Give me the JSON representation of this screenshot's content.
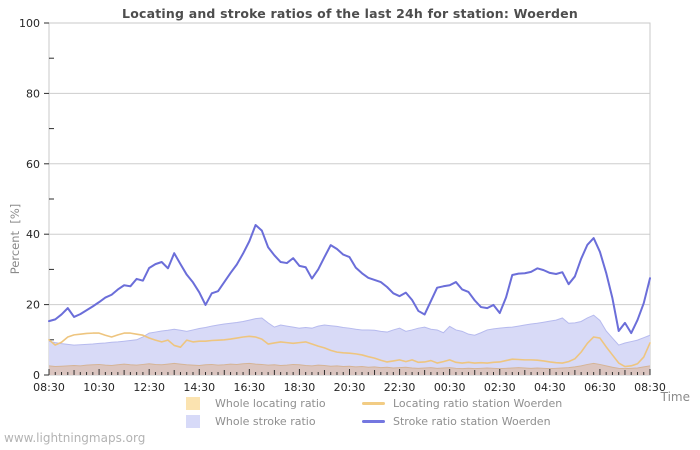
{
  "title": "Locating and stroke ratios of the last 24h for station: Woerden",
  "ylabel": "Percent  [%]",
  "xlabel": "Time",
  "watermark": "www.lightningmaps.org",
  "colors": {
    "frame": "#c9c9c9",
    "grid": "#cdcdcd",
    "tick": "#2e2e2e",
    "tick_label": "#262626",
    "muted_text": "#8a8a8a",
    "legend_text": "#8f8f8f",
    "watermark_text": "#b3b3b3",
    "title_text": "#4d4d4d"
  },
  "legend": {
    "items": [
      {
        "label": "Whole locating ratio",
        "swatch": "area",
        "color": "#fbe3b0"
      },
      {
        "label": "Whole stroke ratio",
        "swatch": "area",
        "color": "#d7daf8"
      },
      {
        "label": "Locating ratio station Woerden",
        "swatch": "line",
        "color": "#f2cc84"
      },
      {
        "label": "Stroke ratio station Woerden",
        "swatch": "line",
        "color": "#7477e0"
      }
    ]
  },
  "chart_data": {
    "type": "line",
    "title": "Locating and stroke ratios of the last 24h for station: Woerden",
    "xlabel": "Time",
    "ylabel": "Percent [%]",
    "ylim": [
      0,
      100
    ],
    "x_start": "08:30",
    "x_interval_minutes": 15,
    "x_ticks": [
      "08:30",
      "10:30",
      "12:30",
      "14:30",
      "16:30",
      "18:30",
      "20:30",
      "22:30",
      "00:30",
      "02:30",
      "04:30",
      "06:30",
      "08:30"
    ],
    "y_ticks": [
      0,
      20,
      40,
      60,
      80,
      100
    ],
    "grid": true,
    "legend_position": "bottom",
    "series": [
      {
        "id": "whole-stroke",
        "name": "Whole stroke ratio",
        "type": "area",
        "fill": "#d8daf7",
        "edge": "#b6baee",
        "values": [
          9.6,
          9.2,
          8.9,
          8.7,
          8.5,
          8.6,
          8.7,
          8.8,
          9,
          9.1,
          9.3,
          9.4,
          9.6,
          9.8,
          10,
          10.8,
          11.9,
          12.2,
          12.5,
          12.7,
          13,
          12.7,
          12.4,
          12.8,
          13.2,
          13.5,
          13.9,
          14.2,
          14.5,
          14.7,
          14.9,
          15.2,
          15.6,
          16,
          16.2,
          14.8,
          13.6,
          14.2,
          13.9,
          13.6,
          13.3,
          13.5,
          13.3,
          13.9,
          14.2,
          14,
          13.8,
          13.5,
          13.3,
          13,
          12.8,
          12.8,
          12.7,
          12.4,
          12.2,
          12.8,
          13.3,
          12.4,
          12.8,
          13.3,
          13.6,
          13,
          12.8,
          12,
          13.8,
          12.8,
          12.4,
          11.6,
          11.3,
          12,
          12.8,
          13.1,
          13.3,
          13.5,
          13.6,
          13.9,
          14.2,
          14.5,
          14.7,
          15,
          15.3,
          15.6,
          16.2,
          14.7,
          14.8,
          15.2,
          16.2,
          17,
          15.5,
          12.5,
          10.5,
          8.5,
          9.1,
          9.5,
          9.9,
          10.6,
          11.3
        ]
      },
      {
        "id": "whole-locating",
        "name": "Whole locating ratio",
        "type": "area",
        "fill": "#dbc5c0",
        "edge": "#d5b496",
        "values": [
          2.6,
          2.4,
          2.5,
          2.6,
          2.7,
          2.6,
          2.8,
          2.9,
          3,
          2.8,
          2.7,
          2.9,
          3.1,
          2.9,
          2.8,
          3,
          3.2,
          3,
          2.9,
          3.1,
          3.3,
          3.1,
          2.9,
          2.8,
          2.7,
          2.9,
          3,
          2.8,
          2.9,
          3.1,
          3,
          3.2,
          3.3,
          3.1,
          3,
          2.8,
          2.9,
          2.7,
          2.8,
          3,
          2.9,
          2.7,
          2.6,
          2.8,
          2.7,
          2.5,
          2.6,
          2.4,
          2.5,
          2.3,
          2.4,
          2.2,
          2.3,
          2.1,
          2.2,
          2,
          2.1,
          2.2,
          2,
          1.9,
          2,
          2.1,
          1.9,
          2,
          2.1,
          1.9,
          1.8,
          1.9,
          1.8,
          1.9,
          2,
          1.9,
          1.8,
          1.9,
          2,
          2.1,
          2,
          1.9,
          2,
          1.9,
          1.8,
          1.9,
          2,
          2.1,
          2.3,
          2.6,
          3,
          3.3,
          3,
          2.6,
          2.2,
          1.9,
          1.8,
          1.9,
          2,
          2.3,
          2.6
        ]
      },
      {
        "id": "locating-station",
        "name": "Locating ratio station Woerden",
        "type": "line",
        "color": "#eec57f",
        "width": 1.6,
        "values": [
          10,
          8.5,
          9.3,
          10.8,
          11.4,
          11.6,
          11.8,
          11.9,
          11.9,
          11.3,
          10.8,
          11.4,
          11.9,
          11.9,
          11.6,
          11.3,
          10.5,
          9.9,
          9.4,
          9.9,
          8.4,
          7.9,
          9.9,
          9.4,
          9.6,
          9.6,
          9.8,
          9.9,
          10,
          10.2,
          10.5,
          10.8,
          11,
          10.8,
          10.2,
          8.8,
          9.1,
          9.4,
          9.2,
          9,
          9.2,
          9.4,
          8.8,
          8.2,
          7.7,
          7,
          6.5,
          6.3,
          6.2,
          6,
          5.7,
          5.2,
          4.8,
          4.2,
          3.7,
          4,
          4.3,
          3.8,
          4.3,
          3.6,
          3.7,
          4.1,
          3.4,
          3.8,
          4.3,
          3.6,
          3.4,
          3.6,
          3.4,
          3.5,
          3.4,
          3.6,
          3.7,
          4.1,
          4.5,
          4.4,
          4.3,
          4.3,
          4.2,
          4,
          3.7,
          3.5,
          3.4,
          3.8,
          4.6,
          6.5,
          9,
          10.8,
          10.5,
          8,
          5.7,
          3.4,
          2.4,
          2.6,
          3.2,
          5.1,
          9.1
        ]
      },
      {
        "id": "stroke-station",
        "name": "Stroke ratio station Woerden",
        "type": "line",
        "color": "#6b6ed9",
        "width": 2,
        "values": [
          15.3,
          15.8,
          17.2,
          19,
          16.5,
          17.3,
          18.4,
          19.5,
          20.7,
          22,
          22.8,
          24.3,
          25.5,
          25.2,
          27.3,
          26.8,
          30.4,
          31.5,
          32.1,
          30.3,
          34.6,
          31.5,
          28.5,
          26.3,
          23.5,
          19.9,
          23.2,
          23.8,
          26.4,
          29,
          31.4,
          34.5,
          38,
          42.6,
          41,
          36.3,
          34,
          32.1,
          31.8,
          33.2,
          31,
          30.6,
          27.4,
          30,
          33.5,
          36.9,
          35.8,
          34.2,
          33.5,
          30.5,
          28.9,
          27.6,
          27,
          26.4,
          25,
          23.2,
          22.4,
          23.4,
          21.3,
          18.2,
          17.2,
          21,
          24.8,
          25.2,
          25.5,
          26.4,
          24.3,
          23.6,
          21.2,
          19.3,
          19,
          19.9,
          17.6,
          22,
          28.4,
          28.8,
          28.9,
          29.3,
          30.3,
          29.8,
          29,
          28.7,
          29.2,
          25.8,
          28,
          33,
          37,
          38.9,
          35,
          29,
          21.8,
          12.5,
          14.8,
          11.9,
          15.6,
          20.4,
          27.5
        ]
      }
    ]
  }
}
